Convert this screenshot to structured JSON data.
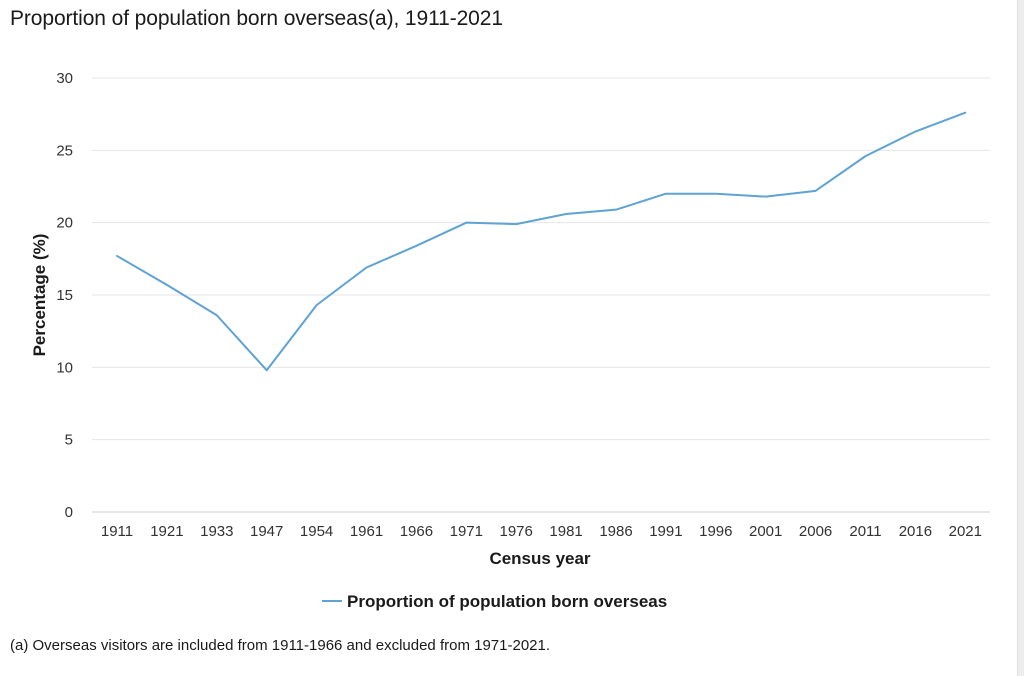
{
  "chart_data": {
    "type": "line",
    "title": "Proportion of population born overseas(a), 1911-2021",
    "xlabel": "Census year",
    "ylabel": "Percentage (%)",
    "ylim": [
      0,
      30
    ],
    "yticks": [
      "0",
      "5",
      "10",
      "15",
      "20",
      "25",
      "30"
    ],
    "categories": [
      "1911",
      "1921",
      "1933",
      "1947",
      "1954",
      "1961",
      "1966",
      "1971",
      "1976",
      "1981",
      "1986",
      "1991",
      "1996",
      "2001",
      "2006",
      "2011",
      "2016",
      "2021"
    ],
    "series": [
      {
        "name": "Proportion of population born overseas",
        "color": "#5ea3d3",
        "values": [
          17.7,
          15.7,
          13.6,
          9.8,
          14.3,
          16.9,
          18.4,
          20.0,
          19.9,
          20.6,
          20.9,
          22.0,
          22.0,
          21.8,
          22.2,
          24.6,
          26.3,
          27.6
        ]
      }
    ],
    "grid": true,
    "legend_position": "bottom-center"
  },
  "footnote": "(a) Overseas visitors are included from 1911-1966 and excluded from 1971-2021."
}
